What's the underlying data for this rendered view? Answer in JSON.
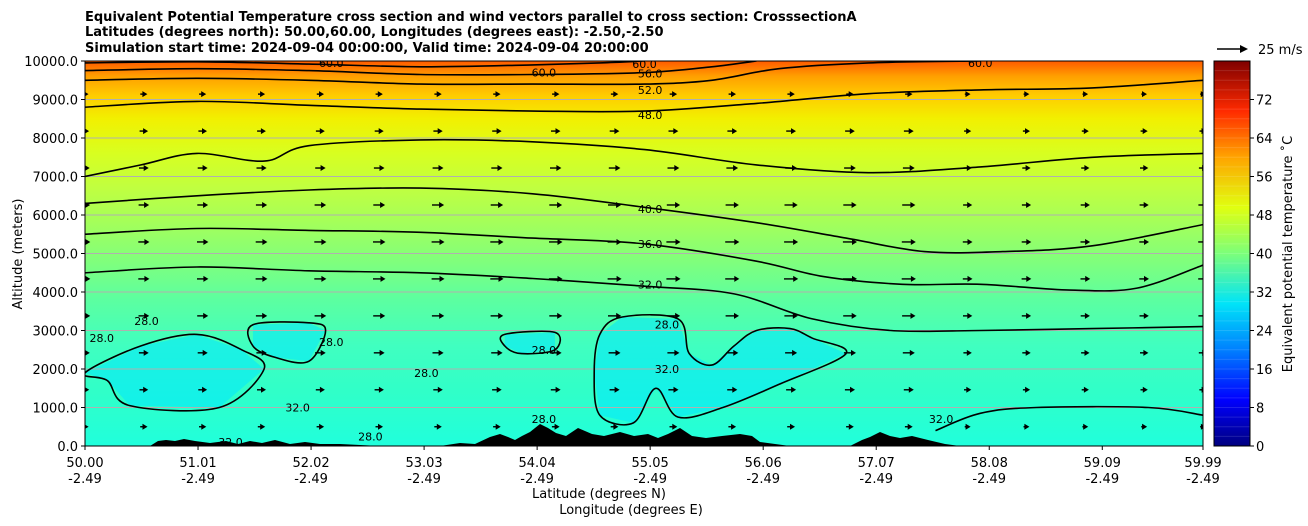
{
  "title_lines": [
    "Equivalent Potential Temperature cross section and wind vectors parallel to cross section: CrosssectionA",
    "Latitudes (degrees north): 50.00,60.00, Longitudes (degrees east): -2.50,-2.50",
    "Simulation start time: 2024-09-04 00:00:00, Valid time: 2024-09-04 20:00:00"
  ],
  "quiver_key_label": "25 m/s",
  "chart_data": {
    "type": "heatmap",
    "title": "Equivalent Potential Temperature cross section and wind vectors parallel to cross section: CrosssectionA",
    "ylabel": "Altitude (meters)",
    "xlabel": "Latitude (degrees N)",
    "xlabel2": "Longitude (degrees E)",
    "ylim": [
      0,
      10000
    ],
    "xlim": [
      50.0,
      59.99
    ],
    "yticks": [
      "0.0",
      "1000.0",
      "2000.0",
      "3000.0",
      "4000.0",
      "5000.0",
      "6000.0",
      "7000.0",
      "8000.0",
      "9000.0",
      "10000.0"
    ],
    "xticks": [
      {
        "lat": "50.00",
        "lon": "-2.49"
      },
      {
        "lat": "51.01",
        "lon": "-2.49"
      },
      {
        "lat": "52.02",
        "lon": "-2.49"
      },
      {
        "lat": "53.03",
        "lon": "-2.49"
      },
      {
        "lat": "54.04",
        "lon": "-2.49"
      },
      {
        "lat": "55.05",
        "lon": "-2.49"
      },
      {
        "lat": "56.06",
        "lon": "-2.49"
      },
      {
        "lat": "57.07",
        "lon": "-2.49"
      },
      {
        "lat": "58.08",
        "lon": "-2.49"
      },
      {
        "lat": "59.09",
        "lon": "-2.49"
      },
      {
        "lat": "59.99",
        "lon": "-2.49"
      }
    ],
    "grid": "horizontal",
    "colorbar": {
      "label": "Equivalent potential temperature $^\\circ$C",
      "label_display": "Equivalent potential temperature ˚C",
      "range": [
        0,
        80
      ],
      "ticks": [
        "0",
        "8",
        "16",
        "24",
        "32",
        "40",
        "48",
        "56",
        "64",
        "72"
      ]
    },
    "contours": [
      {
        "level": "28.0",
        "points": [
          [
            50.0,
            1900
          ],
          [
            50.5,
            2600
          ],
          [
            51.0,
            2900
          ],
          [
            51.4,
            2500
          ],
          [
            51.6,
            2000
          ],
          [
            51.2,
            1000
          ],
          [
            50.4,
            1050
          ],
          [
            50.2,
            1700
          ]
        ]
      },
      {
        "level": "28.0",
        "points": [
          [
            51.5,
            2600
          ],
          [
            51.5,
            3150
          ],
          [
            52.0,
            3200
          ],
          [
            52.15,
            3000
          ],
          [
            52.0,
            2200
          ],
          [
            51.7,
            2300
          ]
        ]
      },
      {
        "level": "28.0",
        "points": [
          [
            54.6,
            2900
          ],
          [
            54.8,
            3350
          ],
          [
            55.3,
            3300
          ],
          [
            55.4,
            2400
          ],
          [
            55.6,
            2100
          ],
          [
            55.8,
            2600
          ],
          [
            56.0,
            3000
          ],
          [
            56.3,
            3050
          ],
          [
            56.5,
            2800
          ],
          [
            56.8,
            2400
          ],
          [
            56.2,
            1600
          ],
          [
            55.7,
            1000
          ],
          [
            55.3,
            750
          ],
          [
            55.1,
            1500
          ],
          [
            54.9,
            600
          ],
          [
            54.6,
            800
          ],
          [
            54.55,
            1900
          ]
        ]
      },
      {
        "level": "28.0",
        "points": [
          [
            53.75,
            2900
          ],
          [
            54.2,
            2950
          ],
          [
            54.2,
            2500
          ],
          [
            53.9,
            2400
          ],
          [
            53.75,
            2600
          ]
        ]
      },
      {
        "level": "32.0",
        "points": [
          [
            50.0,
            4500
          ],
          [
            51.0,
            4650
          ],
          [
            52.0,
            4550
          ],
          [
            53.0,
            4500
          ],
          [
            54.0,
            4350
          ],
          [
            55.0,
            4150
          ],
          [
            55.8,
            3950
          ],
          [
            56.5,
            3300
          ],
          [
            57.2,
            3000
          ],
          [
            58.0,
            3000
          ],
          [
            59.0,
            3050
          ],
          [
            59.99,
            3100
          ]
        ]
      },
      {
        "level": "32.0",
        "points": [
          [
            57.6,
            400
          ],
          [
            58.0,
            850
          ],
          [
            58.5,
            1000
          ],
          [
            59.5,
            1000
          ],
          [
            59.99,
            800
          ]
        ]
      },
      {
        "level": "36.0",
        "points": [
          [
            50.0,
            5500
          ],
          [
            51.0,
            5650
          ],
          [
            52.0,
            5600
          ],
          [
            53.0,
            5550
          ],
          [
            54.0,
            5400
          ],
          [
            55.0,
            5250
          ],
          [
            56.0,
            4800
          ],
          [
            56.6,
            4400
          ],
          [
            57.3,
            4200
          ],
          [
            58.0,
            4200
          ],
          [
            58.8,
            4050
          ],
          [
            59.4,
            4100
          ],
          [
            59.99,
            4700
          ]
        ]
      },
      {
        "level": "40.0",
        "points": [
          [
            50.0,
            6300
          ],
          [
            51.0,
            6500
          ],
          [
            52.0,
            6650
          ],
          [
            53.0,
            6700
          ],
          [
            54.0,
            6550
          ],
          [
            55.0,
            6200
          ],
          [
            56.0,
            5800
          ],
          [
            56.8,
            5400
          ],
          [
            57.5,
            5050
          ],
          [
            58.2,
            5050
          ],
          [
            59.0,
            5200
          ],
          [
            59.99,
            5750
          ]
        ]
      },
      {
        "level": "44.0",
        "points": [
          [
            50.0,
            7000
          ],
          [
            50.5,
            7300
          ],
          [
            51.0,
            7600
          ],
          [
            51.6,
            7400
          ],
          [
            52.0,
            7800
          ],
          [
            53.0,
            7950
          ],
          [
            54.0,
            7900
          ],
          [
            55.0,
            7700
          ],
          [
            56.0,
            7300
          ],
          [
            57.0,
            7100
          ],
          [
            58.0,
            7250
          ],
          [
            59.0,
            7500
          ],
          [
            59.99,
            7600
          ]
        ]
      },
      {
        "level": "48.0",
        "points": [
          [
            50.0,
            8800
          ],
          [
            51.0,
            8950
          ],
          [
            52.0,
            8850
          ],
          [
            53.0,
            8750
          ],
          [
            54.0,
            8700
          ],
          [
            55.0,
            8700
          ],
          [
            56.0,
            8900
          ],
          [
            57.0,
            9150
          ],
          [
            58.0,
            9250
          ],
          [
            59.0,
            9300
          ],
          [
            59.99,
            9500
          ]
        ]
      },
      {
        "level": "52.0",
        "points": [
          [
            50.0,
            9500
          ],
          [
            51.0,
            9550
          ],
          [
            52.0,
            9500
          ],
          [
            53.0,
            9400
          ],
          [
            54.0,
            9400
          ],
          [
            55.0,
            9400
          ],
          [
            55.6,
            9500
          ],
          [
            56.2,
            9800
          ],
          [
            57.0,
            9950
          ],
          [
            58.0,
            10000
          ]
        ]
      },
      {
        "level": "56.0",
        "points": [
          [
            50.0,
            9750
          ],
          [
            51.0,
            9800
          ],
          [
            52.0,
            9750
          ],
          [
            53.0,
            9650
          ],
          [
            54.0,
            9650
          ],
          [
            55.0,
            9700
          ],
          [
            55.6,
            9850
          ],
          [
            56.0,
            10000
          ]
        ]
      },
      {
        "level": "60.0",
        "points": [
          [
            50.0,
            9950
          ],
          [
            51.0,
            9980
          ],
          [
            52.0,
            9920
          ],
          [
            53.0,
            9850
          ],
          [
            54.0,
            9900
          ],
          [
            54.6,
            9950
          ],
          [
            55.0,
            10000
          ]
        ]
      }
    ],
    "contour_labels": [
      {
        "text": "60.0",
        "lat": 54.1,
        "alt": 9700
      },
      {
        "text": "60.0",
        "lat": 55.0,
        "alt": 9920
      },
      {
        "text": "56.0",
        "lat": 55.05,
        "alt": 9680
      },
      {
        "text": "52.0",
        "lat": 55.05,
        "alt": 9250
      },
      {
        "text": "48.0",
        "lat": 55.05,
        "alt": 8600
      },
      {
        "text": "40.0",
        "lat": 55.05,
        "alt": 6150
      },
      {
        "text": "36.0",
        "lat": 55.05,
        "alt": 5250
      },
      {
        "text": "32.0",
        "lat": 55.05,
        "alt": 4200
      },
      {
        "text": "28.0",
        "lat": 55.2,
        "alt": 3150
      },
      {
        "text": "32.0",
        "lat": 55.2,
        "alt": 2000
      },
      {
        "text": "28.0",
        "lat": 54.1,
        "alt": 2500
      },
      {
        "text": "28.0",
        "lat": 50.55,
        "alt": 3250
      },
      {
        "text": "28.0",
        "lat": 50.15,
        "alt": 2800
      },
      {
        "text": "28.0",
        "lat": 52.2,
        "alt": 2700
      },
      {
        "text": "28.0",
        "lat": 53.05,
        "alt": 1900
      },
      {
        "text": "32.0",
        "lat": 51.9,
        "alt": 1000
      },
      {
        "text": "28.0",
        "lat": 52.55,
        "alt": 250
      },
      {
        "text": "32.0",
        "lat": 51.3,
        "alt": 100
      },
      {
        "text": "28.0",
        "lat": 54.1,
        "alt": 700
      },
      {
        "text": "32.0",
        "lat": 57.65,
        "alt": 700
      },
      {
        "text": "60.0",
        "lat": 52.2,
        "alt": 9950
      },
      {
        "text": "60.0",
        "lat": 58.0,
        "alt": 9950
      }
    ]
  }
}
